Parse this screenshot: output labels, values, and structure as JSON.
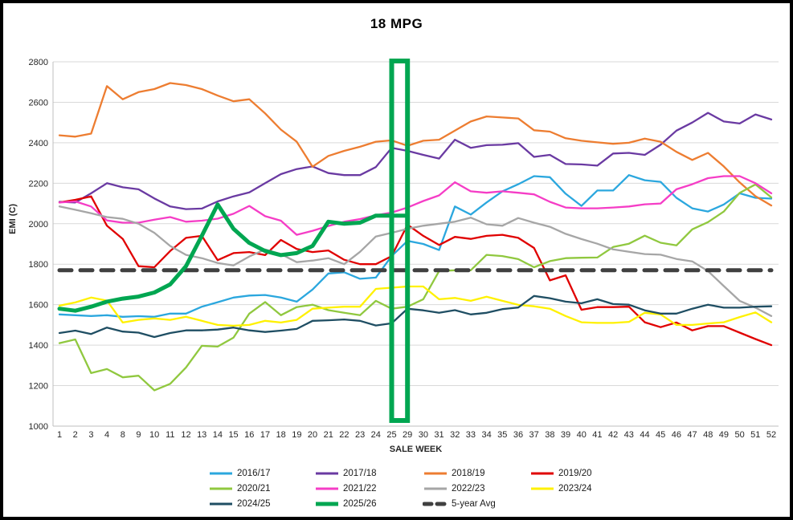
{
  "chart_data": {
    "type": "line",
    "title": "18 MPG",
    "xlabel": "SALE WEEK",
    "ylabel": "EMI (C)",
    "ylim": [
      1000,
      2800
    ],
    "yticks": [
      2800,
      2600,
      2400,
      2200,
      2000,
      1800,
      1600,
      1400,
      1200,
      1000
    ],
    "grid": "horizontal",
    "legend_position": "bottom",
    "categories": [
      1,
      2,
      3,
      4,
      8,
      9,
      10,
      11,
      12,
      13,
      14,
      15,
      16,
      17,
      18,
      19,
      20,
      21,
      22,
      23,
      24,
      25,
      29,
      30,
      31,
      32,
      33,
      34,
      35,
      36,
      37,
      38,
      39,
      40,
      41,
      42,
      43,
      44,
      45,
      46,
      47,
      48,
      49,
      50,
      51,
      52
    ],
    "highlight": {
      "from_label": 25,
      "to_label": 29,
      "color": "#00A651"
    },
    "series": [
      {
        "id": "2016-17",
        "name": "2016/17",
        "color": "#2BA7DE",
        "width": 2.3,
        "values": [
          1552,
          1548,
          1544,
          1548,
          1540,
          1543,
          1540,
          1556,
          1556,
          1590,
          1612,
          1635,
          1645,
          1648,
          1635,
          1615,
          1675,
          1754,
          1760,
          1728,
          1734,
          1840,
          1915,
          1900,
          1870,
          2085,
          2045,
          2105,
          2160,
          2195,
          2235,
          2230,
          2148,
          2088,
          2164,
          2164,
          2240,
          2215,
          2207,
          2128,
          2076,
          2060,
          2095,
          2150,
          2128,
          2124
        ]
      },
      {
        "id": "2017-18",
        "name": "2017/18",
        "color": "#6A3AA2",
        "width": 2.3,
        "values": [
          2108,
          2105,
          2150,
          2200,
          2180,
          2170,
          2125,
          2085,
          2072,
          2075,
          2110,
          2135,
          2155,
          2200,
          2245,
          2270,
          2283,
          2250,
          2240,
          2240,
          2280,
          2375,
          2360,
          2340,
          2322,
          2415,
          2375,
          2388,
          2390,
          2398,
          2330,
          2340,
          2295,
          2293,
          2287,
          2347,
          2350,
          2340,
          2390,
          2460,
          2500,
          2548,
          2505,
          2495,
          2540,
          2515
        ]
      },
      {
        "id": "2018-19",
        "name": "2018/19",
        "color": "#ED7D31",
        "width": 2.3,
        "values": [
          2437,
          2430,
          2445,
          2680,
          2615,
          2650,
          2665,
          2695,
          2685,
          2665,
          2633,
          2605,
          2615,
          2545,
          2465,
          2405,
          2282,
          2335,
          2360,
          2380,
          2405,
          2412,
          2385,
          2410,
          2415,
          2460,
          2505,
          2530,
          2525,
          2520,
          2462,
          2455,
          2422,
          2410,
          2402,
          2395,
          2400,
          2420,
          2405,
          2355,
          2315,
          2350,
          2283,
          2204,
          2136,
          2090
        ]
      },
      {
        "id": "2019-20",
        "name": "2019/20",
        "color": "#E00000",
        "width": 2.3,
        "values": [
          2105,
          2118,
          2135,
          1990,
          1925,
          1790,
          1785,
          1865,
          1930,
          1940,
          1820,
          1855,
          1860,
          1845,
          1920,
          1875,
          1860,
          1868,
          1822,
          1800,
          1800,
          1840,
          1995,
          1940,
          1895,
          1935,
          1925,
          1940,
          1945,
          1930,
          1880,
          1720,
          1745,
          1575,
          1588,
          1588,
          1590,
          1513,
          1489,
          1512,
          1473,
          1494,
          1494,
          1462,
          1430,
          1400
        ]
      },
      {
        "id": "2020-21",
        "name": "2020/21",
        "color": "#90C83F",
        "width": 2.3,
        "values": [
          1410,
          1428,
          1262,
          1282,
          1241,
          1249,
          1177,
          1209,
          1290,
          1397,
          1393,
          1437,
          1556,
          1613,
          1548,
          1588,
          1600,
          1573,
          1560,
          1548,
          1619,
          1580,
          1590,
          1627,
          1766,
          1770,
          1770,
          1846,
          1840,
          1825,
          1785,
          1815,
          1830,
          1832,
          1833,
          1885,
          1901,
          1941,
          1906,
          1893,
          1972,
          2008,
          2060,
          2152,
          2194,
          2130
        ]
      },
      {
        "id": "2021-22",
        "name": "2021/22",
        "color": "#F53DC6",
        "width": 2.3,
        "values": [
          2105,
          2110,
          2085,
          2016,
          2005,
          2005,
          2020,
          2033,
          2010,
          2015,
          2025,
          2049,
          2088,
          2037,
          2015,
          1945,
          1965,
          1989,
          2010,
          2023,
          2042,
          2055,
          2080,
          2112,
          2140,
          2205,
          2160,
          2153,
          2160,
          2153,
          2145,
          2108,
          2080,
          2076,
          2076,
          2080,
          2085,
          2096,
          2100,
          2170,
          2195,
          2225,
          2235,
          2235,
          2200,
          2150
        ]
      },
      {
        "id": "2022-23",
        "name": "2022/23",
        "color": "#A6A6A6",
        "width": 2.3,
        "values": [
          2085,
          2069,
          2052,
          2033,
          2024,
          2000,
          1955,
          1890,
          1846,
          1830,
          1806,
          1794,
          1838,
          1873,
          1850,
          1810,
          1818,
          1830,
          1800,
          1861,
          1937,
          1955,
          1975,
          1990,
          2000,
          2010,
          2030,
          1997,
          1990,
          2028,
          2005,
          1985,
          1950,
          1924,
          1901,
          1873,
          1861,
          1850,
          1847,
          1826,
          1814,
          1766,
          1692,
          1619,
          1585,
          1544
        ]
      },
      {
        "id": "2023-24",
        "name": "2023/24",
        "color": "#FFF100",
        "width": 2.3,
        "values": [
          1595,
          1611,
          1635,
          1620,
          1512,
          1525,
          1532,
          1525,
          1540,
          1520,
          1500,
          1496,
          1500,
          1520,
          1512,
          1525,
          1580,
          1585,
          1590,
          1590,
          1678,
          1684,
          1690,
          1690,
          1627,
          1633,
          1619,
          1639,
          1619,
          1599,
          1592,
          1580,
          1544,
          1513,
          1510,
          1510,
          1515,
          1560,
          1552,
          1500,
          1500,
          1507,
          1513,
          1539,
          1562,
          1513
        ]
      },
      {
        "id": "2024-25",
        "name": "2024/25",
        "color": "#1F4E63",
        "width": 2.3,
        "values": [
          1460,
          1472,
          1455,
          1487,
          1467,
          1462,
          1440,
          1460,
          1473,
          1473,
          1477,
          1487,
          1473,
          1465,
          1472,
          1480,
          1520,
          1523,
          1527,
          1520,
          1497,
          1508,
          1580,
          1572,
          1560,
          1573,
          1552,
          1560,
          1578,
          1586,
          1643,
          1632,
          1615,
          1607,
          1627,
          1603,
          1600,
          1572,
          1556,
          1556,
          1580,
          1600,
          1585,
          1585,
          1590,
          1592
        ]
      },
      {
        "id": "2025-26",
        "name": "2025/26",
        "color": "#00A651",
        "width": 5,
        "values": [
          1580,
          1570,
          1590,
          1615,
          1630,
          1640,
          1660,
          1700,
          1790,
          1940,
          2095,
          1975,
          1905,
          1865,
          1845,
          1855,
          1890,
          2010,
          2000,
          2005,
          2040,
          2040,
          2040,
          null,
          null,
          null,
          null,
          null,
          null,
          null,
          null,
          null,
          null,
          null,
          null,
          null,
          null,
          null,
          null,
          null,
          null,
          null,
          null,
          null,
          null,
          null
        ]
      },
      {
        "id": "5-year-avg",
        "name": "5-year Avg",
        "color": "#404040",
        "width": 5,
        "dash": true,
        "value": 1770
      }
    ]
  }
}
